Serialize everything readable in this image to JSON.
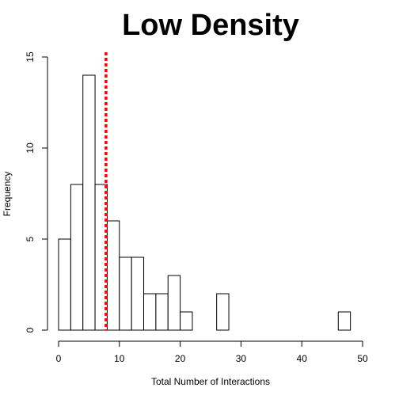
{
  "chart_data": {
    "type": "bar",
    "title": "Low Density",
    "xlabel": "Total Number of Interactions",
    "ylabel": "Frequency",
    "bin_edges": [
      0,
      2,
      4,
      6,
      8,
      10,
      12,
      14,
      16,
      18,
      20,
      22,
      24,
      26,
      28,
      30,
      32,
      34,
      36,
      38,
      40,
      42,
      44,
      46,
      48
    ],
    "values": [
      5,
      8,
      14,
      8,
      6,
      4,
      4,
      2,
      2,
      3,
      1,
      0,
      0,
      2,
      0,
      0,
      0,
      0,
      0,
      0,
      0,
      0,
      0,
      1
    ],
    "xlim": [
      0,
      50
    ],
    "ylim": [
      0,
      15
    ],
    "x_ticks": [
      "0",
      "10",
      "20",
      "30",
      "40",
      "50"
    ],
    "y_ticks": [
      "0",
      "5",
      "10",
      "15"
    ],
    "reference_line": {
      "x": 7.8,
      "color": "#ff0000",
      "style": "dotted"
    },
    "grid": false,
    "legend": "none"
  }
}
